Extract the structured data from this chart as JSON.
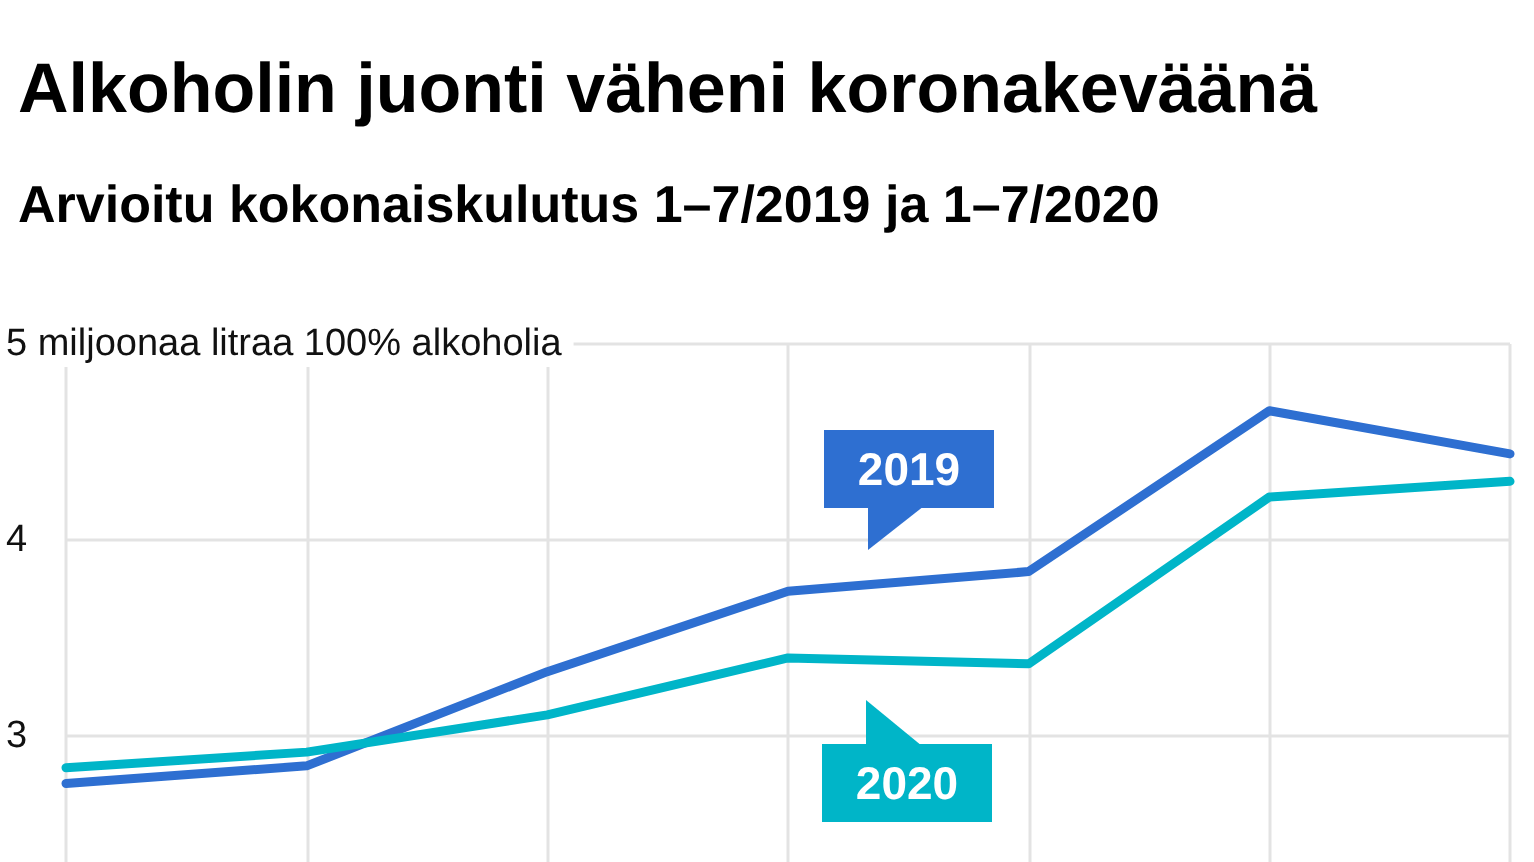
{
  "chart_data": {
    "type": "line",
    "title": "Alkoholin juonti väheni koronakeväänä",
    "subtitle": "Arvioitu kokonaiskulutus 1–7/2019 ja 1–7/2020",
    "categories": [
      null,
      null,
      null,
      null,
      null,
      null,
      null
    ],
    "series": [
      {
        "name": "2019",
        "color": "#2e6fd1",
        "values": [
          2.76,
          2.85,
          3.33,
          3.74,
          3.84,
          4.66,
          4.44
        ]
      },
      {
        "name": "2020",
        "color": "#00b5c8",
        "values": [
          2.84,
          2.92,
          3.11,
          3.4,
          3.37,
          4.22,
          4.3
        ]
      }
    ],
    "ylim": [
      2.36,
      5
    ],
    "yticks": [
      3,
      4,
      {
        "value": 5,
        "label": "5 miljoonaa litraa 100% alkoholia"
      }
    ],
    "grid": true,
    "legend": "center",
    "marker": "none",
    "line_style": "solid",
    "tick_labels": "y"
  }
}
